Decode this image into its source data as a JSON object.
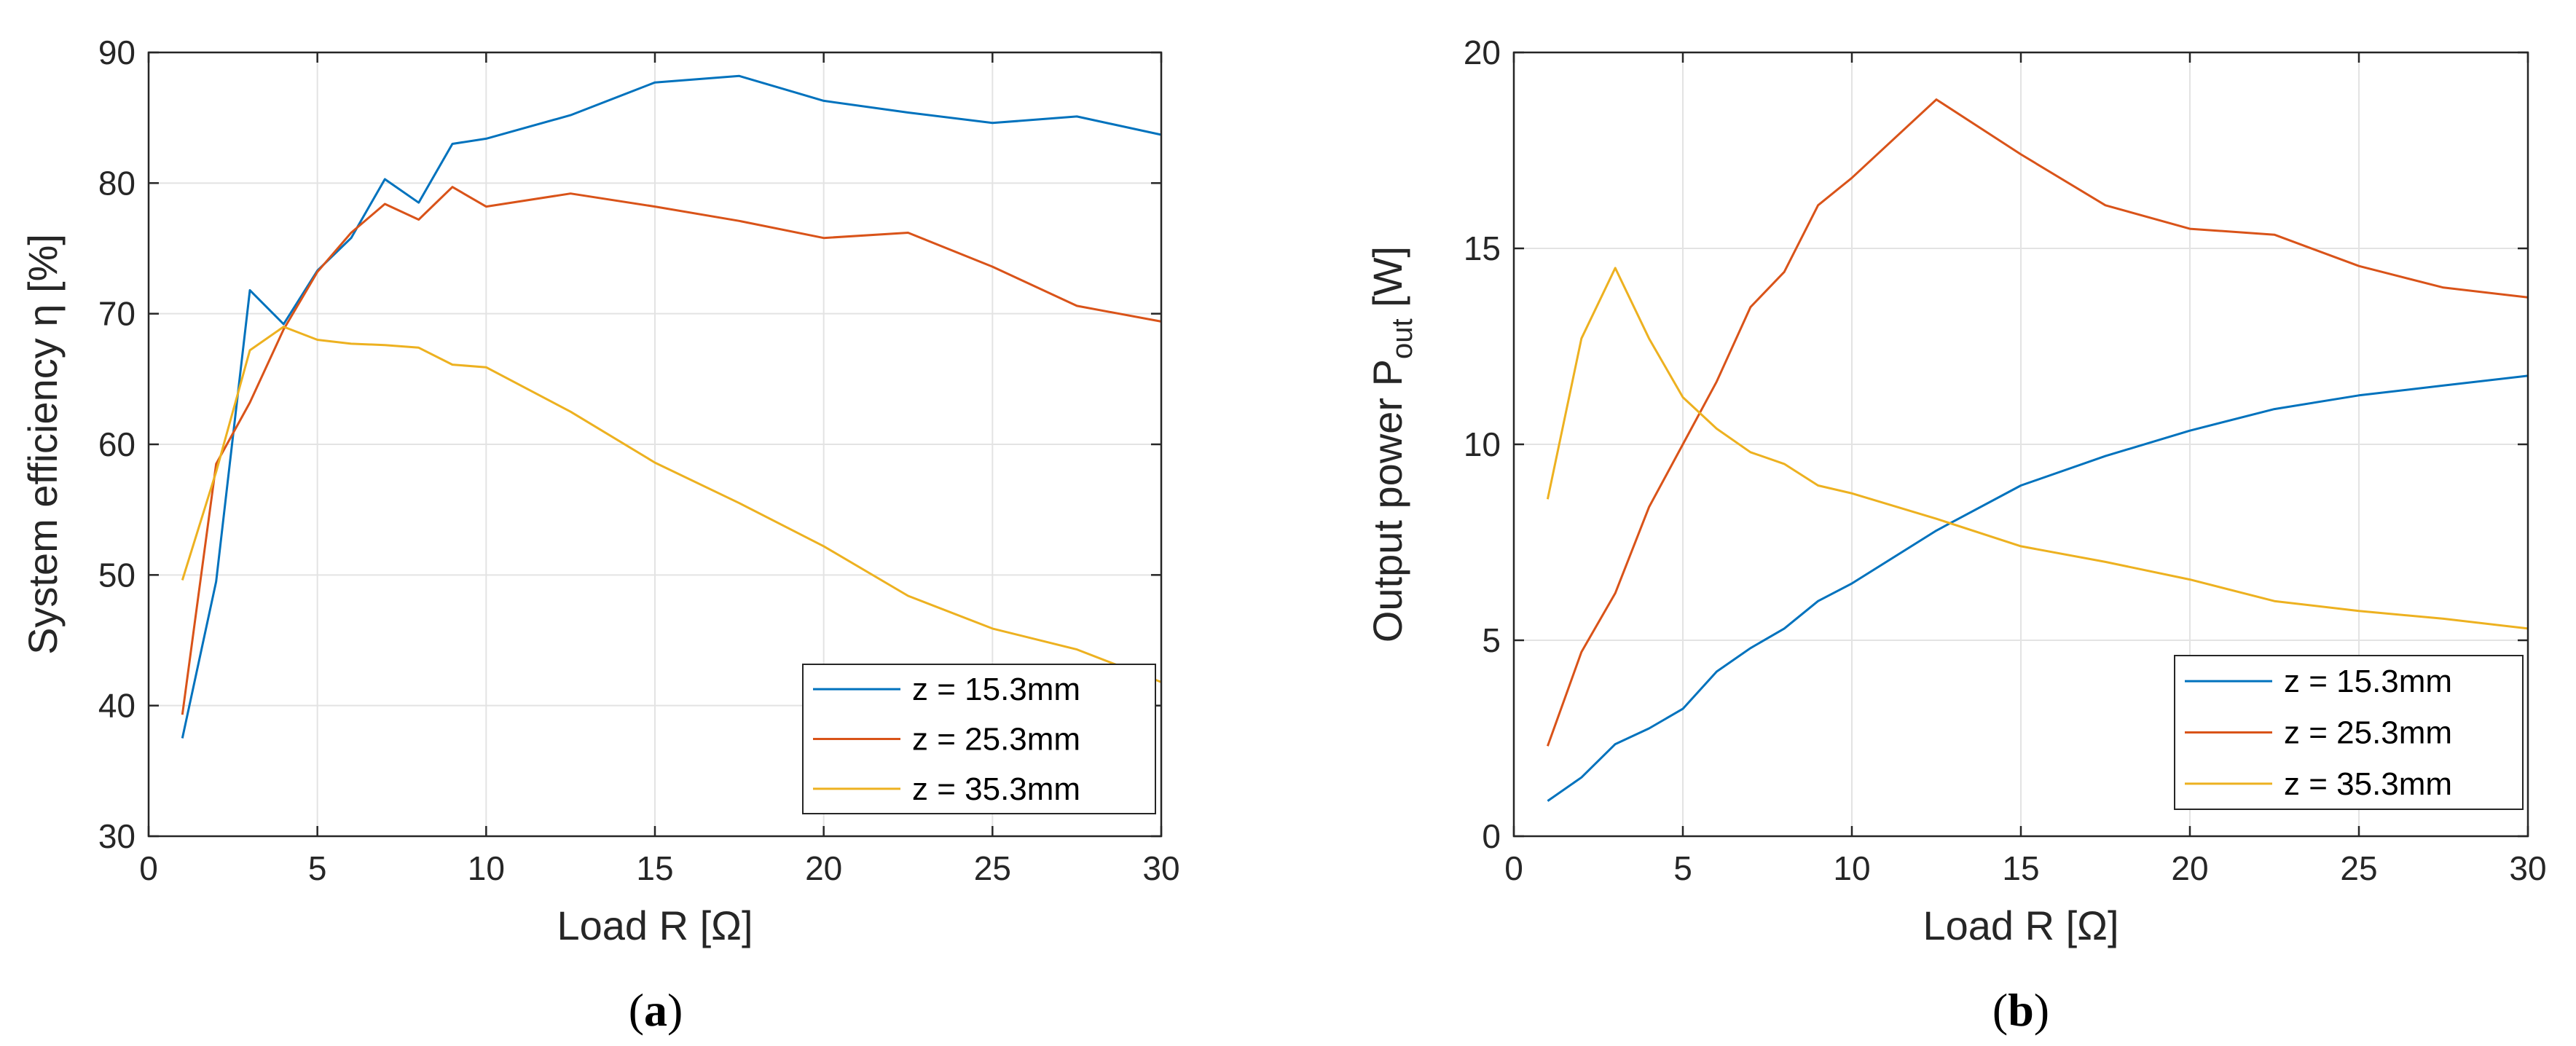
{
  "chart_data": [
    {
      "type": "line",
      "caption": "a",
      "xlabel": "Load R [Ω]",
      "ylabel": "System efficiency η [%]",
      "xlim": [
        0,
        30
      ],
      "ylim": [
        30,
        90
      ],
      "xticks": [
        0,
        5,
        10,
        15,
        20,
        25,
        30
      ],
      "yticks": [
        30,
        40,
        50,
        60,
        70,
        80,
        90
      ],
      "grid": true,
      "legend_position": "bottom-right",
      "series": [
        {
          "name": "z = 15.3mm",
          "color": "#0072BD",
          "x": [
            1,
            2,
            3,
            4,
            5,
            6,
            7,
            8,
            9,
            10,
            12.5,
            15,
            17.5,
            20,
            22.5,
            25,
            27.5,
            30
          ],
          "y": [
            37.5,
            49.5,
            71.8,
            69.2,
            73.3,
            75.8,
            80.3,
            78.5,
            83.0,
            83.4,
            85.2,
            87.7,
            88.2,
            86.3,
            85.4,
            84.6,
            85.1,
            83.7
          ]
        },
        {
          "name": "z = 25.3mm",
          "color": "#D95319",
          "x": [
            1,
            2,
            3,
            4,
            5,
            6,
            7,
            8,
            9,
            10,
            12.5,
            15,
            17.5,
            20,
            22.5,
            25,
            27.5,
            30
          ],
          "y": [
            39.3,
            58.5,
            63.2,
            68.8,
            73.2,
            76.2,
            78.4,
            77.2,
            79.7,
            78.2,
            79.2,
            78.2,
            77.1,
            75.8,
            76.2,
            73.6,
            70.6,
            69.4
          ]
        },
        {
          "name": "z = 35.3mm",
          "color": "#EDB120",
          "x": [
            1,
            2,
            3,
            4,
            5,
            6,
            7,
            8,
            9,
            10,
            12.5,
            15,
            17.5,
            20,
            22.5,
            25,
            27.5,
            30
          ],
          "y": [
            49.6,
            57.9,
            67.2,
            69.0,
            68.0,
            67.7,
            67.6,
            67.4,
            66.1,
            65.9,
            62.5,
            58.6,
            55.5,
            52.2,
            48.4,
            45.9,
            44.3,
            41.8
          ]
        }
      ]
    },
    {
      "type": "line",
      "caption": "b",
      "xlabel": "Load R [Ω]",
      "ylabel": "Output power P",
      "ylabel_sub": "out",
      "ylabel_unit": "[W]",
      "xlim": [
        0,
        30
      ],
      "ylim": [
        0,
        20
      ],
      "xticks": [
        0,
        5,
        10,
        15,
        20,
        25,
        30
      ],
      "yticks": [
        0,
        5,
        10,
        15,
        20
      ],
      "grid": true,
      "legend_position": "bottom-right",
      "series": [
        {
          "name": "z = 15.3mm",
          "color": "#0072BD",
          "x": [
            1,
            2,
            3,
            4,
            5,
            6,
            7,
            8,
            9,
            10,
            12.5,
            15,
            17.5,
            20,
            22.5,
            25,
            27.5,
            30
          ],
          "y": [
            0.9,
            1.5,
            2.35,
            2.75,
            3.25,
            4.2,
            4.8,
            5.3,
            6.0,
            6.45,
            7.8,
            8.95,
            9.7,
            10.35,
            10.9,
            11.25,
            11.5,
            11.75
          ]
        },
        {
          "name": "z = 25.3mm",
          "color": "#D95319",
          "x": [
            1,
            2,
            3,
            4,
            5,
            6,
            7,
            8,
            9,
            10,
            12.5,
            15,
            17.5,
            20,
            22.5,
            25,
            27.5,
            30
          ],
          "y": [
            2.3,
            4.7,
            6.2,
            8.4,
            10.0,
            11.6,
            13.5,
            14.4,
            16.1,
            16.8,
            18.8,
            17.4,
            16.1,
            15.5,
            15.35,
            14.55,
            14.0,
            13.75
          ]
        },
        {
          "name": "z = 35.3mm",
          "color": "#EDB120",
          "x": [
            1,
            2,
            3,
            4,
            5,
            6,
            7,
            8,
            9,
            10,
            12.5,
            15,
            17.5,
            20,
            22.5,
            25,
            27.5,
            30
          ],
          "y": [
            8.6,
            12.7,
            14.5,
            12.7,
            11.2,
            10.4,
            9.8,
            9.5,
            8.95,
            8.75,
            8.1,
            7.4,
            7.0,
            6.55,
            6.0,
            5.75,
            5.55,
            5.3
          ]
        }
      ]
    }
  ]
}
